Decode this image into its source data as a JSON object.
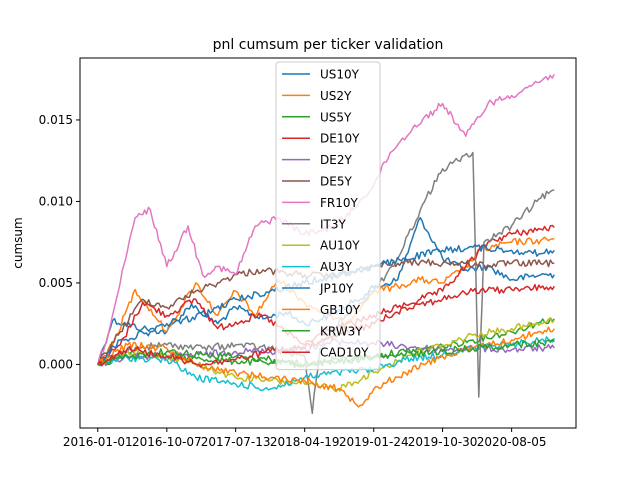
{
  "chart_data": {
    "type": "line",
    "title": "pnl cumsum per ticker validation",
    "xlabel": "",
    "ylabel": "cumsum",
    "x_ticks": [
      "2016-01-01",
      "2016-10-07",
      "2017-07-13",
      "2018-04-19",
      "2019-01-24",
      "2019-10-30",
      "2020-08-05"
    ],
    "y_ticks": [
      "0.000",
      "0.005",
      "0.010",
      "0.015"
    ],
    "xlim": [
      "2015-10-21",
      "2021-04-23"
    ],
    "ylim": [
      -0.0039,
      0.0188
    ],
    "grid": false,
    "legend_position": "top-center",
    "series": [
      {
        "name": "US10Y",
        "color": "#1f77b4",
        "points": [
          [
            "2016-01-01",
            0.0
          ],
          [
            "2016-03-01",
            0.0027
          ],
          [
            "2016-07-01",
            0.0022
          ],
          [
            "2016-10-07",
            0.002
          ],
          [
            "2017-01-15",
            0.0037
          ],
          [
            "2017-05-01",
            0.0025
          ],
          [
            "2017-07-13",
            0.0035
          ],
          [
            "2017-11-01",
            0.0028
          ],
          [
            "2018-02-01",
            0.0032
          ],
          [
            "2018-04-19",
            0.0025
          ],
          [
            "2018-08-01",
            0.003
          ],
          [
            "2018-11-01",
            0.0038
          ],
          [
            "2019-01-24",
            0.0047
          ],
          [
            "2019-05-01",
            0.0052
          ],
          [
            "2019-08-01",
            0.009
          ],
          [
            "2019-10-30",
            0.0065
          ],
          [
            "2020-02-01",
            0.0058
          ],
          [
            "2020-05-01",
            0.006
          ],
          [
            "2020-08-05",
            0.0052
          ],
          [
            "2020-12-01",
            0.0055
          ],
          [
            "2021-01-25",
            0.0055
          ]
        ]
      },
      {
        "name": "US2Y",
        "color": "#ff7f0e",
        "points": [
          [
            "2016-01-01",
            0.0
          ],
          [
            "2016-03-01",
            0.0012
          ],
          [
            "2016-06-01",
            0.0046
          ],
          [
            "2016-10-07",
            0.002
          ],
          [
            "2017-02-01",
            0.005
          ],
          [
            "2017-05-01",
            0.003
          ],
          [
            "2017-07-13",
            0.0045
          ],
          [
            "2017-10-01",
            0.003
          ],
          [
            "2018-01-01",
            0.0052
          ],
          [
            "2018-04-19",
            0.0038
          ],
          [
            "2018-07-01",
            0.0032
          ],
          [
            "2018-10-01",
            0.0025
          ],
          [
            "2019-01-24",
            0.0045
          ],
          [
            "2019-05-01",
            0.0048
          ],
          [
            "2019-08-01",
            0.0052
          ],
          [
            "2019-10-30",
            0.005
          ],
          [
            "2020-02-01",
            0.006
          ],
          [
            "2020-04-01",
            0.007
          ],
          [
            "2020-08-05",
            0.0075
          ],
          [
            "2020-12-01",
            0.0076
          ],
          [
            "2021-01-25",
            0.0077
          ]
        ]
      },
      {
        "name": "US5Y",
        "color": "#2ca02c",
        "points": [
          [
            "2016-01-01",
            0.0
          ],
          [
            "2016-05-01",
            0.0008
          ],
          [
            "2016-10-07",
            0.0005
          ],
          [
            "2017-03-01",
            0.0003
          ],
          [
            "2017-07-13",
            0.0002
          ],
          [
            "2017-12-01",
            0.0001
          ],
          [
            "2018-04-19",
            0.0
          ],
          [
            "2018-09-01",
            0.0003
          ],
          [
            "2019-01-24",
            0.0005
          ],
          [
            "2019-06-01",
            0.0008
          ],
          [
            "2019-10-30",
            0.0011
          ],
          [
            "2020-03-01",
            0.0015
          ],
          [
            "2020-08-05",
            0.002
          ],
          [
            "2020-12-01",
            0.0026
          ],
          [
            "2021-01-25",
            0.0028
          ]
        ]
      },
      {
        "name": "DE10Y",
        "color": "#d62728",
        "points": [
          [
            "2016-01-01",
            0.0
          ],
          [
            "2016-04-01",
            0.0012
          ],
          [
            "2016-07-01",
            0.0038
          ],
          [
            "2016-10-07",
            0.003
          ],
          [
            "2017-02-01",
            0.004
          ],
          [
            "2017-05-01",
            0.0022
          ],
          [
            "2017-07-13",
            0.0026
          ],
          [
            "2017-11-01",
            0.003
          ],
          [
            "2018-02-01",
            0.002
          ],
          [
            "2018-04-19",
            0.0012
          ],
          [
            "2018-08-01",
            0.0022
          ],
          [
            "2018-11-01",
            0.0025
          ],
          [
            "2019-01-24",
            0.003
          ],
          [
            "2019-05-01",
            0.0035
          ],
          [
            "2019-08-01",
            0.004
          ],
          [
            "2019-10-30",
            0.0045
          ],
          [
            "2020-02-01",
            0.006
          ],
          [
            "2020-05-01",
            0.0075
          ],
          [
            "2020-08-05",
            0.008
          ],
          [
            "2020-12-01",
            0.0083
          ],
          [
            "2021-01-25",
            0.0084
          ]
        ]
      },
      {
        "name": "DE2Y",
        "color": "#9467bd",
        "points": [
          [
            "2016-01-01",
            0.0
          ],
          [
            "2016-05-01",
            0.0005
          ],
          [
            "2016-10-07",
            0.0005
          ],
          [
            "2017-03-01",
            0.0006
          ],
          [
            "2017-07-13",
            0.0008
          ],
          [
            "2017-12-01",
            0.0008
          ],
          [
            "2018-04-19",
            0.001
          ],
          [
            "2018-09-01",
            0.0014
          ],
          [
            "2019-01-24",
            0.0013
          ],
          [
            "2019-06-01",
            0.0011
          ],
          [
            "2019-10-30",
            0.0009
          ],
          [
            "2020-03-01",
            0.001
          ],
          [
            "2020-08-05",
            0.0009
          ],
          [
            "2020-12-01",
            0.001
          ],
          [
            "2021-01-25",
            0.001
          ]
        ]
      },
      {
        "name": "DE5Y",
        "color": "#8c564b",
        "points": [
          [
            "2016-01-01",
            0.0
          ],
          [
            "2016-04-01",
            0.002
          ],
          [
            "2016-07-01",
            0.004
          ],
          [
            "2016-10-07",
            0.0035
          ],
          [
            "2017-02-01",
            0.0045
          ],
          [
            "2017-05-01",
            0.005
          ],
          [
            "2017-07-13",
            0.0055
          ],
          [
            "2017-11-01",
            0.0058
          ],
          [
            "2018-02-01",
            0.0056
          ],
          [
            "2018-04-19",
            0.0055
          ],
          [
            "2018-08-01",
            0.0054
          ],
          [
            "2018-11-01",
            0.0057
          ],
          [
            "2019-01-24",
            0.006
          ],
          [
            "2019-05-01",
            0.0062
          ],
          [
            "2019-08-01",
            0.0063
          ],
          [
            "2019-10-30",
            0.0062
          ],
          [
            "2020-02-01",
            0.0062
          ],
          [
            "2020-05-01",
            0.0061
          ],
          [
            "2020-08-05",
            0.0062
          ],
          [
            "2020-12-01",
            0.0062
          ],
          [
            "2021-01-25",
            0.0062
          ]
        ]
      },
      {
        "name": "FR10Y",
        "color": "#e377c2",
        "points": [
          [
            "2016-01-01",
            0.0
          ],
          [
            "2016-02-15",
            0.002
          ],
          [
            "2016-04-01",
            0.005
          ],
          [
            "2016-06-01",
            0.009
          ],
          [
            "2016-08-01",
            0.0095
          ],
          [
            "2016-10-07",
            0.006
          ],
          [
            "2017-01-01",
            0.0085
          ],
          [
            "2017-03-01",
            0.0055
          ],
          [
            "2017-05-01",
            0.006
          ],
          [
            "2017-07-13",
            0.0055
          ],
          [
            "2017-10-01",
            0.0085
          ],
          [
            "2018-01-01",
            0.009
          ],
          [
            "2018-04-19",
            0.008
          ],
          [
            "2018-07-01",
            0.0082
          ],
          [
            "2018-10-01",
            0.009
          ],
          [
            "2019-01-24",
            0.011
          ],
          [
            "2019-04-01",
            0.013
          ],
          [
            "2019-07-01",
            0.0145
          ],
          [
            "2019-10-30",
            0.016
          ],
          [
            "2020-02-01",
            0.014
          ],
          [
            "2020-05-01",
            0.016
          ],
          [
            "2020-08-05",
            0.0165
          ],
          [
            "2020-11-01",
            0.0172
          ],
          [
            "2021-01-25",
            0.0178
          ]
        ]
      },
      {
        "name": "IT3Y",
        "color": "#7f7f7f",
        "points": [
          [
            "2016-01-01",
            0.0
          ],
          [
            "2016-06-01",
            0.001
          ],
          [
            "2016-10-07",
            0.0012
          ],
          [
            "2017-03-01",
            0.001
          ],
          [
            "2017-07-13",
            0.0012
          ],
          [
            "2017-12-01",
            0.001
          ],
          [
            "2018-04-19",
            0.0005
          ],
          [
            "2018-05-20",
            -0.003
          ],
          [
            "2018-06-20",
            0.001
          ],
          [
            "2018-10-01",
            0.003
          ],
          [
            "2019-01-24",
            0.0045
          ],
          [
            "2019-05-01",
            0.0065
          ],
          [
            "2019-08-01",
            0.0095
          ],
          [
            "2019-10-30",
            0.012
          ],
          [
            "2020-01-01",
            0.0125
          ],
          [
            "2020-03-01",
            0.013
          ],
          [
            "2020-03-25",
            -0.002
          ],
          [
            "2020-04-15",
            0.0075
          ],
          [
            "2020-08-05",
            0.0085
          ],
          [
            "2020-12-01",
            0.0102
          ],
          [
            "2021-01-25",
            0.0107
          ]
        ]
      },
      {
        "name": "AU10Y",
        "color": "#bcbd22",
        "points": [
          [
            "2016-01-01",
            0.0
          ],
          [
            "2016-05-01",
            0.0008
          ],
          [
            "2016-10-07",
            0.0005
          ],
          [
            "2017-02-01",
            0.0
          ],
          [
            "2017-07-13",
            -0.0008
          ],
          [
            "2017-12-01",
            -0.001
          ],
          [
            "2018-04-19",
            -0.0012
          ],
          [
            "2018-09-01",
            -0.0015
          ],
          [
            "2019-01-24",
            -0.0005
          ],
          [
            "2019-06-01",
            0.0005
          ],
          [
            "2019-10-30",
            0.0012
          ],
          [
            "2020-03-01",
            0.0018
          ],
          [
            "2020-08-05",
            0.0022
          ],
          [
            "2020-12-01",
            0.0025
          ],
          [
            "2021-01-25",
            0.0027
          ]
        ]
      },
      {
        "name": "AU3Y",
        "color": "#17becf",
        "points": [
          [
            "2016-01-01",
            0.0
          ],
          [
            "2016-05-01",
            0.0004
          ],
          [
            "2016-10-07",
            0.0003
          ],
          [
            "2017-02-01",
            -0.0008
          ],
          [
            "2017-07-13",
            -0.0012
          ],
          [
            "2017-12-01",
            -0.0015
          ],
          [
            "2018-04-19",
            -0.0008
          ],
          [
            "2018-09-01",
            -0.0005
          ],
          [
            "2019-01-24",
            -0.0003
          ],
          [
            "2019-06-01",
            0.0003
          ],
          [
            "2019-10-30",
            0.0006
          ],
          [
            "2020-03-01",
            0.001
          ],
          [
            "2020-08-05",
            0.0012
          ],
          [
            "2020-12-01",
            0.0015
          ],
          [
            "2021-01-25",
            0.0016
          ]
        ]
      },
      {
        "name": "JP10Y",
        "color": "#1f77b4",
        "points": [
          [
            "2016-01-01",
            0.0
          ],
          [
            "2016-04-01",
            0.0015
          ],
          [
            "2016-08-01",
            0.002
          ],
          [
            "2016-10-07",
            0.0025
          ],
          [
            "2017-03-01",
            0.003
          ],
          [
            "2017-07-13",
            0.004
          ],
          [
            "2017-12-01",
            0.0045
          ],
          [
            "2018-04-19",
            0.005
          ],
          [
            "2018-09-01",
            0.0055
          ],
          [
            "2019-01-24",
            0.006
          ],
          [
            "2019-06-01",
            0.0065
          ],
          [
            "2019-10-30",
            0.007
          ],
          [
            "2020-03-01",
            0.0072
          ],
          [
            "2020-08-05",
            0.007
          ],
          [
            "2020-12-01",
            0.0068
          ],
          [
            "2021-01-25",
            0.007
          ]
        ]
      },
      {
        "name": "GB10Y",
        "color": "#ff7f0e",
        "points": [
          [
            "2016-01-01",
            0.0
          ],
          [
            "2016-05-01",
            0.0012
          ],
          [
            "2016-10-07",
            0.001
          ],
          [
            "2017-02-01",
            0.0
          ],
          [
            "2017-07-13",
            -0.0005
          ],
          [
            "2017-12-01",
            -0.0008
          ],
          [
            "2018-04-19",
            -0.001
          ],
          [
            "2018-09-01",
            -0.0015
          ],
          [
            "2018-12-01",
            -0.0025
          ],
          [
            "2019-01-24",
            -0.0015
          ],
          [
            "2019-06-01",
            -0.0005
          ],
          [
            "2019-10-30",
            0.0005
          ],
          [
            "2020-03-01",
            0.001
          ],
          [
            "2020-08-05",
            0.0015
          ],
          [
            "2020-12-01",
            0.002
          ],
          [
            "2021-01-25",
            0.0022
          ]
        ]
      },
      {
        "name": "KRW3Y",
        "color": "#2ca02c",
        "points": [
          [
            "2016-01-01",
            0.0
          ],
          [
            "2016-05-01",
            0.0005
          ],
          [
            "2016-10-07",
            0.0008
          ],
          [
            "2017-03-01",
            0.0006
          ],
          [
            "2017-07-13",
            0.0005
          ],
          [
            "2017-12-01",
            0.0003
          ],
          [
            "2018-04-19",
            0.0
          ],
          [
            "2018-09-01",
            0.0002
          ],
          [
            "2019-01-24",
            0.0004
          ],
          [
            "2019-06-01",
            0.0006
          ],
          [
            "2019-10-30",
            0.0008
          ],
          [
            "2020-03-01",
            0.001
          ],
          [
            "2020-08-05",
            0.0012
          ],
          [
            "2020-12-01",
            0.0013
          ],
          [
            "2021-01-25",
            0.0014
          ]
        ]
      },
      {
        "name": "CAD10Y",
        "color": "#d62728",
        "points": [
          [
            "2016-01-01",
            0.0
          ],
          [
            "2016-05-01",
            0.001
          ],
          [
            "2016-10-07",
            0.0005
          ],
          [
            "2017-03-01",
            0.0
          ],
          [
            "2017-07-13",
            0.0003
          ],
          [
            "2017-12-01",
            0.0008
          ],
          [
            "2018-04-19",
            0.001
          ],
          [
            "2018-09-01",
            0.0018
          ],
          [
            "2019-01-24",
            0.0025
          ],
          [
            "2019-06-01",
            0.0035
          ],
          [
            "2019-10-30",
            0.004
          ],
          [
            "2020-03-01",
            0.0045
          ],
          [
            "2020-08-05",
            0.0046
          ],
          [
            "2020-12-01",
            0.0047
          ],
          [
            "2021-01-25",
            0.0048
          ]
        ]
      }
    ]
  }
}
